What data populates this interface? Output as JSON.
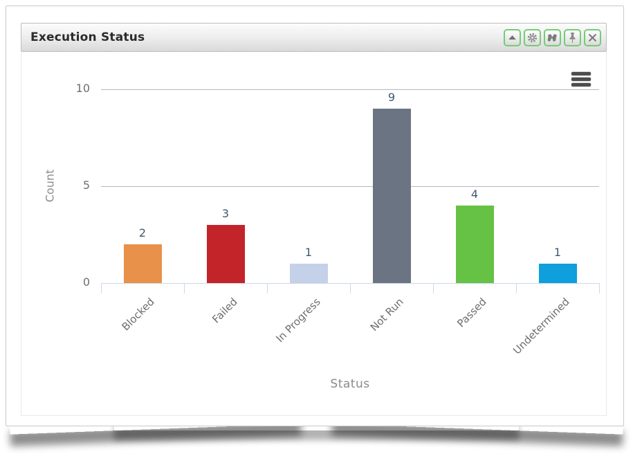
{
  "panel": {
    "title": "Execution Status",
    "toolbar": {
      "collapse_label": "Collapse",
      "settings_label": "Settings",
      "search_label": "Find",
      "pin_label": "Pin",
      "close_label": "Close",
      "icons": [
        "triangle-up-icon",
        "gear-icon",
        "binoculars-icon",
        "pushpin-icon",
        "close-x-icon"
      ],
      "accent_border_color": "#72ce72",
      "glyph_color": "#7a7a7a"
    },
    "context_menu_icon": "hamburger-menu-icon"
  },
  "chart_data": {
    "type": "bar",
    "title": "",
    "categories": [
      "Blocked",
      "Failed",
      "In Progress",
      "Not Run",
      "Passed",
      "Undetermined"
    ],
    "values": [
      2,
      3,
      1,
      9,
      4,
      1
    ],
    "bar_colors": [
      "#e8914a",
      "#c22429",
      "#c4d1e8",
      "#6b7483",
      "#66c244",
      "#0e9fdc"
    ],
    "xlabel": "Status",
    "ylabel": "Count",
    "ylim": [
      0,
      10
    ],
    "yticks": [
      0,
      5,
      10
    ],
    "grid": true,
    "legend_position": "none",
    "data_label_color": "#3e576f",
    "gridline_color": "#b3b9c1",
    "axisline_color": "#cbd9ea",
    "x_label_rotation_deg": -45
  }
}
